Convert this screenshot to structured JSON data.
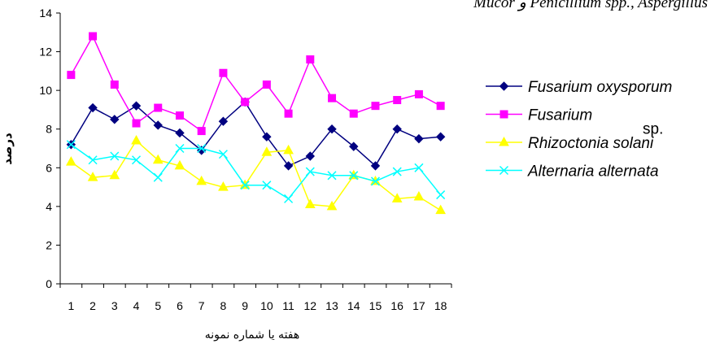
{
  "header": {
    "text": "Mucor  و Penicillium  spp., Aspergillus"
  },
  "chart_data": {
    "type": "line",
    "title": "",
    "xlabel": "هفته یا شماره نمونه",
    "ylabel": "درصد",
    "categories": [
      "1",
      "2",
      "3",
      "4",
      "5",
      "6",
      "7",
      "8",
      "9",
      "10",
      "11",
      "12",
      "13",
      "14",
      "15",
      "16",
      "17",
      "18"
    ],
    "ylim": [
      0,
      14
    ],
    "yticks": [
      0,
      2,
      4,
      6,
      8,
      10,
      12,
      14
    ],
    "grid": false,
    "legend_position": "right",
    "series": [
      {
        "name": "Fusarium oxysporum",
        "name_suffix": "",
        "color": "#000080",
        "marker": "diamond",
        "values": [
          7.2,
          9.1,
          8.5,
          9.2,
          8.2,
          7.8,
          6.9,
          8.4,
          9.4,
          7.6,
          6.1,
          6.6,
          8.0,
          7.1,
          6.1,
          8.0,
          7.5,
          7.6
        ]
      },
      {
        "name": "Fusarium",
        "name_suffix": "sp.",
        "color": "#FF00FF",
        "marker": "square",
        "values": [
          10.8,
          12.8,
          10.3,
          8.3,
          9.1,
          8.7,
          7.9,
          10.9,
          9.4,
          10.3,
          8.8,
          11.6,
          9.6,
          8.8,
          9.2,
          9.5,
          9.8,
          9.2
        ]
      },
      {
        "name": "Rhizoctonia solani",
        "name_suffix": "",
        "color": "#FFFF00",
        "marker": "triangle",
        "values": [
          6.3,
          5.5,
          5.6,
          7.4,
          6.4,
          6.1,
          5.3,
          5.0,
          5.1,
          6.8,
          6.9,
          4.1,
          4.0,
          5.6,
          5.3,
          4.4,
          4.5,
          3.8
        ]
      },
      {
        "name": "Alternaria alternata",
        "name_suffix": "",
        "color": "#00FFFF",
        "marker": "x",
        "values": [
          7.2,
          6.4,
          6.6,
          6.4,
          5.5,
          7.0,
          7.0,
          6.7,
          5.1,
          5.1,
          4.4,
          5.8,
          5.6,
          5.6,
          5.3,
          5.8,
          6.0,
          4.6
        ]
      }
    ]
  }
}
